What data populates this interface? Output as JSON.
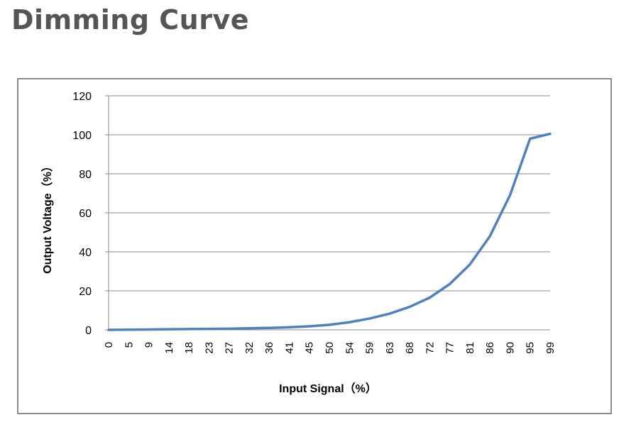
{
  "page": {
    "title": "Dimming Curve"
  },
  "chart_data": {
    "type": "line",
    "xlabel": "Input Signal（%）",
    "ylabel": "Output Voltage（%）",
    "ylim": [
      0,
      120
    ],
    "yticks": [
      0,
      20,
      40,
      60,
      80,
      100,
      120
    ],
    "categories": [
      "0",
      "5",
      "9",
      "14",
      "18",
      "23",
      "27",
      "32",
      "36",
      "41",
      "45",
      "50",
      "54",
      "59",
      "63",
      "68",
      "72",
      "77",
      "81",
      "86",
      "90",
      "95",
      "99"
    ],
    "grid": "horizontal",
    "line_color": "#4f81bd",
    "series": [
      {
        "values": [
          0,
          0.1,
          0.2,
          0.3,
          0.4,
          0.5,
          0.6,
          0.8,
          1.0,
          1.3,
          1.8,
          2.6,
          3.9,
          5.8,
          8.3,
          11.8,
          16.5,
          23.5,
          33.5,
          48.0,
          69.0,
          98.0,
          100.5
        ]
      }
    ]
  }
}
